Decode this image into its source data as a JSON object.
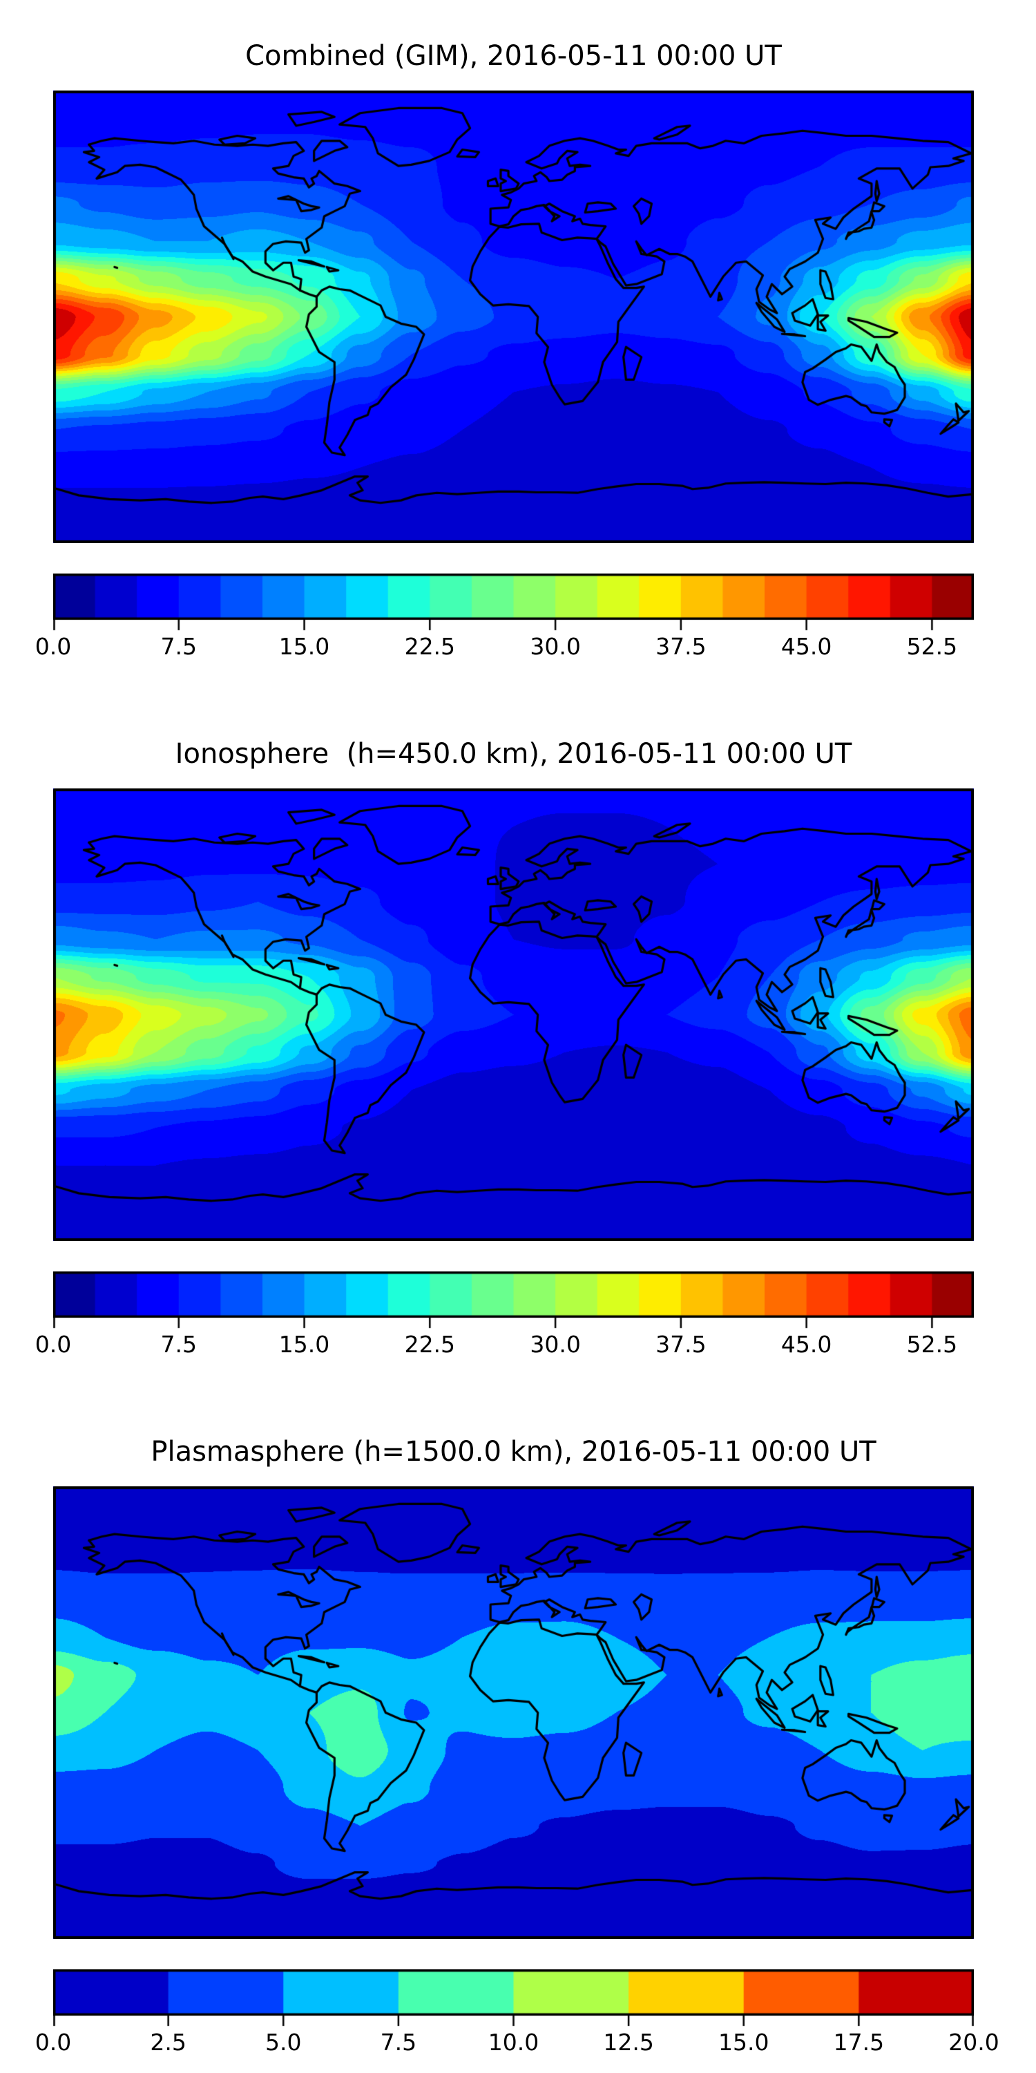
{
  "figure": {
    "colors": {
      "background": "#ffffff",
      "coastline": "#000000",
      "text": "#000000"
    },
    "colormap": "jet"
  },
  "chart_data": [
    {
      "type": "heatmap",
      "title": "Combined (GIM), 2016-05-11 00:00 UT",
      "projection": "equirectangular",
      "lon_range": [
        -180,
        180
      ],
      "lat_range": [
        -90,
        90
      ],
      "grid_lons": [
        -180,
        -160,
        -140,
        -120,
        -100,
        -80,
        -60,
        -40,
        -20,
        0,
        20,
        40,
        60,
        80,
        100,
        120,
        140,
        160,
        180
      ],
      "grid_lats": [
        90,
        75,
        60,
        45,
        30,
        15,
        0,
        -15,
        -30,
        -45,
        -60,
        -75,
        -90
      ],
      "values": [
        [
          7,
          7,
          7,
          7,
          7,
          7,
          7,
          7,
          7,
          7,
          7,
          7,
          7,
          7,
          7,
          7,
          7,
          7,
          7
        ],
        [
          7,
          7,
          7,
          7.2,
          7.4,
          7.4,
          7.2,
          7,
          6.8,
          6.4,
          6.2,
          6.2,
          6.4,
          6.6,
          6.8,
          7,
          7,
          7,
          7
        ],
        [
          8,
          8,
          8.5,
          9,
          9,
          9,
          8.5,
          8,
          7,
          6,
          5.5,
          5.5,
          6,
          6.5,
          7,
          7.5,
          8,
          8,
          8
        ],
        [
          13,
          12,
          11,
          11.5,
          12,
          11,
          10,
          8.5,
          7,
          6,
          5.5,
          5.5,
          6,
          7,
          8,
          9,
          10,
          11,
          13
        ],
        [
          17,
          16,
          15,
          15,
          16,
          15,
          13,
          10,
          8,
          6.5,
          6,
          6,
          7,
          8.5,
          10,
          12,
          14,
          16,
          17
        ],
        [
          37,
          33,
          29,
          26,
          24,
          22,
          18,
          13,
          10,
          9,
          8,
          7.5,
          8,
          9,
          12,
          16,
          21,
          28,
          37
        ],
        [
          52,
          47,
          41,
          37,
          33,
          27,
          20,
          14,
          11,
          9.5,
          9,
          8.5,
          9,
          10,
          13,
          20,
          30,
          42,
          52
        ],
        [
          49,
          43,
          36,
          31,
          26,
          20,
          14,
          10,
          8,
          7,
          6.5,
          6,
          6.5,
          7,
          9,
          14,
          22,
          35,
          49
        ],
        [
          22,
          20,
          17,
          15,
          13,
          10,
          8,
          6.5,
          5.5,
          5,
          4.8,
          4.6,
          4.8,
          5,
          6,
          8,
          11,
          16,
          22
        ],
        [
          10,
          9.5,
          9,
          8.5,
          8,
          7,
          6,
          5.5,
          5,
          4.6,
          4.4,
          4.2,
          4.2,
          4.4,
          4.8,
          5.5,
          7,
          8.5,
          10
        ],
        [
          6,
          6,
          6,
          5.8,
          5.5,
          5.2,
          5,
          4.8,
          4.5,
          4.2,
          4,
          4,
          4,
          4,
          4.2,
          4.5,
          5,
          5.5,
          6
        ],
        [
          4.2,
          4.2,
          4.2,
          4.2,
          4.2,
          4.2,
          4.2,
          4.2,
          4.2,
          4.2,
          4.2,
          4.2,
          4.2,
          4.2,
          4.2,
          4.2,
          4.2,
          4.2,
          4.2
        ],
        [
          4,
          4,
          4,
          4,
          4,
          4,
          4,
          4,
          4,
          4,
          4,
          4,
          4,
          4,
          4,
          4,
          4,
          4,
          4
        ]
      ],
      "scale_min": 0,
      "scale_max": 55,
      "n_bands": 22,
      "band_step": 2.5,
      "colorbar": {
        "vmax": 55,
        "tick_values": [
          0,
          7.5,
          15,
          22.5,
          30,
          37.5,
          45,
          52.5
        ],
        "tick_labels": [
          "0.0",
          "7.5",
          "15.0",
          "22.5",
          "30.0",
          "37.5",
          "45.0",
          "52.5"
        ]
      }
    },
    {
      "type": "heatmap",
      "title": "Ionosphere  (h=450.0 km), 2016-05-11 00:00 UT",
      "projection": "equirectangular",
      "lon_range": [
        -180,
        180
      ],
      "lat_range": [
        -90,
        90
      ],
      "grid_lons": [
        -180,
        -160,
        -140,
        -120,
        -100,
        -80,
        -60,
        -40,
        -20,
        0,
        20,
        40,
        60,
        80,
        100,
        120,
        140,
        160,
        180
      ],
      "grid_lats": [
        90,
        75,
        60,
        45,
        30,
        15,
        0,
        -15,
        -30,
        -45,
        -60,
        -75,
        -90
      ],
      "values": [
        [
          5.5,
          5.5,
          5.5,
          5.5,
          5.5,
          5.5,
          5.5,
          5.5,
          5.5,
          5.5,
          5.5,
          5.5,
          5.5,
          5.5,
          5.5,
          5.5,
          5.5,
          5.5,
          5.5
        ],
        [
          5.5,
          5.5,
          5.5,
          5.6,
          5.8,
          5.8,
          5.6,
          5.5,
          5.2,
          5,
          4.8,
          4.8,
          5,
          5.2,
          5.4,
          5.5,
          5.5,
          5.5,
          5.5
        ],
        [
          6,
          6,
          6.5,
          7,
          7,
          7,
          6.5,
          6,
          5.5,
          4.8,
          4.5,
          4.5,
          4.8,
          5,
          5.5,
          6,
          6,
          6,
          6
        ],
        [
          9,
          9,
          9,
          9.5,
          10,
          9,
          8,
          6.5,
          5.5,
          4.8,
          4.5,
          4.5,
          4.8,
          5.5,
          6.5,
          7.5,
          8,
          8.5,
          9
        ],
        [
          14,
          13,
          12.5,
          13,
          13,
          12,
          10,
          8,
          6,
          5,
          4.8,
          4.8,
          5.5,
          7,
          8.5,
          10,
          11.5,
          13,
          14
        ],
        [
          30,
          27,
          24,
          22,
          22,
          20,
          16,
          11,
          8,
          6.5,
          6,
          6,
          6.5,
          7.5,
          10,
          14,
          18,
          24,
          30
        ],
        [
          43,
          39,
          34,
          31,
          28,
          23,
          17,
          11,
          8.5,
          7.5,
          7,
          7,
          7.5,
          8.5,
          11,
          17,
          26,
          36,
          44
        ],
        [
          41,
          36,
          30,
          26,
          22,
          17,
          12,
          8,
          6,
          5.5,
          5,
          4.8,
          5,
          5.5,
          7.5,
          12,
          19,
          30,
          42
        ],
        [
          18,
          16,
          14,
          12.5,
          11,
          8.5,
          6.5,
          5,
          4.2,
          3.8,
          3.6,
          3.6,
          3.8,
          4,
          5,
          6.5,
          9,
          13,
          18
        ],
        [
          8,
          8,
          7.5,
          7,
          6.5,
          5.5,
          4.8,
          4.2,
          3.8,
          3.5,
          3.4,
          3.4,
          3.4,
          3.6,
          4,
          4.5,
          5.5,
          7,
          8
        ],
        [
          5,
          5,
          5,
          4.8,
          4.6,
          4.4,
          4.2,
          4,
          3.8,
          3.6,
          3.5,
          3.5,
          3.5,
          3.5,
          3.6,
          3.8,
          4.2,
          4.6,
          5
        ],
        [
          3.8,
          3.8,
          3.8,
          3.8,
          3.8,
          3.8,
          3.8,
          3.8,
          3.8,
          3.8,
          3.8,
          3.8,
          3.8,
          3.8,
          3.8,
          3.8,
          3.8,
          3.8,
          3.8
        ],
        [
          3.6,
          3.6,
          3.6,
          3.6,
          3.6,
          3.6,
          3.6,
          3.6,
          3.6,
          3.6,
          3.6,
          3.6,
          3.6,
          3.6,
          3.6,
          3.6,
          3.6,
          3.6,
          3.6
        ]
      ],
      "scale_min": 0,
      "scale_max": 55,
      "n_bands": 22,
      "band_step": 2.5,
      "colorbar": {
        "vmax": 55,
        "tick_values": [
          0,
          7.5,
          15,
          22.5,
          30,
          37.5,
          45,
          52.5
        ],
        "tick_labels": [
          "0.0",
          "7.5",
          "15.0",
          "22.5",
          "30.0",
          "37.5",
          "45.0",
          "52.5"
        ]
      }
    },
    {
      "type": "heatmap",
      "title": "Plasmasphere (h=1500.0 km), 2016-05-11 00:00 UT",
      "projection": "equirectangular",
      "lon_range": [
        -180,
        180
      ],
      "lat_range": [
        -90,
        90
      ],
      "grid_lons": [
        -180,
        -160,
        -140,
        -120,
        -100,
        -80,
        -60,
        -40,
        -20,
        0,
        20,
        40,
        60,
        80,
        100,
        120,
        140,
        160,
        180
      ],
      "grid_lats": [
        90,
        75,
        60,
        45,
        30,
        15,
        0,
        -15,
        -30,
        -45,
        -60,
        -75,
        -90
      ],
      "values": [
        [
          2,
          2,
          2,
          2,
          2,
          2,
          2,
          2,
          2,
          2,
          2,
          2,
          2,
          2,
          2,
          2,
          2,
          2,
          2
        ],
        [
          2.1,
          2.1,
          2.1,
          2.1,
          2.1,
          2.1,
          2.1,
          2.1,
          2.1,
          2.1,
          2.1,
          2.1,
          2.1,
          2.1,
          2.1,
          2.1,
          2.1,
          2.1,
          2.1
        ],
        [
          2.3,
          2.2,
          2.3,
          2.4,
          2.4,
          2.4,
          2.3,
          2.2,
          2.2,
          2.1,
          2.1,
          2.1,
          2.1,
          2.2,
          2.2,
          2.3,
          2.2,
          2.2,
          2.3
        ],
        [
          4,
          3.6,
          3.2,
          3,
          3.2,
          3.5,
          3.5,
          3.5,
          3.6,
          4,
          4.2,
          4,
          3.8,
          3.6,
          3.8,
          4,
          4.2,
          4.2,
          4
        ],
        [
          6,
          5,
          4.2,
          4,
          4.2,
          4.5,
          4.5,
          4.2,
          5,
          5.5,
          5.5,
          5,
          4.5,
          4.5,
          5,
          5.5,
          5.5,
          5.5,
          6
        ],
        [
          10.8,
          8.5,
          7,
          5.5,
          5,
          6.5,
          7,
          5.5,
          6,
          7.2,
          7.2,
          6,
          5,
          5,
          6,
          6.5,
          7.5,
          8.5,
          9.5
        ],
        [
          9.5,
          7.5,
          6,
          5.5,
          6,
          7.5,
          8.5,
          4.8,
          5.5,
          6.5,
          6,
          5,
          4.5,
          4.5,
          5.5,
          6.5,
          7.5,
          9,
          10
        ],
        [
          6.5,
          6,
          5,
          4.5,
          5,
          7,
          8.8,
          6.5,
          4.5,
          4.5,
          4.2,
          3.8,
          3.5,
          3.6,
          4,
          5,
          6.5,
          7.5,
          7
        ],
        [
          4,
          4,
          3.6,
          3.5,
          4,
          6,
          7.2,
          5.5,
          3.8,
          3.5,
          3.2,
          3,
          2.8,
          2.8,
          3,
          3.5,
          4,
          4.5,
          4.2
        ],
        [
          2.8,
          2.8,
          2.6,
          2.6,
          3,
          4.2,
          5,
          4,
          3,
          2.6,
          2.4,
          2.2,
          2.2,
          2.2,
          2.4,
          2.6,
          2.8,
          3,
          2.8
        ],
        [
          2.2,
          2.2,
          2.2,
          2.2,
          2.4,
          2.8,
          2.8,
          2.6,
          2.4,
          2.2,
          2.2,
          2.1,
          2.1,
          2.1,
          2.2,
          2.3,
          2.4,
          2.3,
          2.2
        ],
        [
          2,
          2,
          2,
          2,
          2,
          2,
          2,
          2,
          2,
          2,
          2,
          2,
          2,
          2,
          2,
          2,
          2,
          2,
          2
        ],
        [
          2,
          2,
          2,
          2,
          2,
          2,
          2,
          2,
          2,
          2,
          2,
          2,
          2,
          2,
          2,
          2,
          2,
          2,
          2
        ]
      ],
      "scale_min": 0,
      "scale_max": 20,
      "n_bands": 8,
      "band_step": 2.5,
      "colorbar": {
        "vmax": 20,
        "tick_values": [
          0,
          2.5,
          5,
          7.5,
          10,
          12.5,
          15,
          17.5,
          20
        ],
        "tick_labels": [
          "0.0",
          "2.5",
          "5.0",
          "7.5",
          "10.0",
          "12.5",
          "15.0",
          "17.5",
          "20.0"
        ]
      }
    }
  ]
}
